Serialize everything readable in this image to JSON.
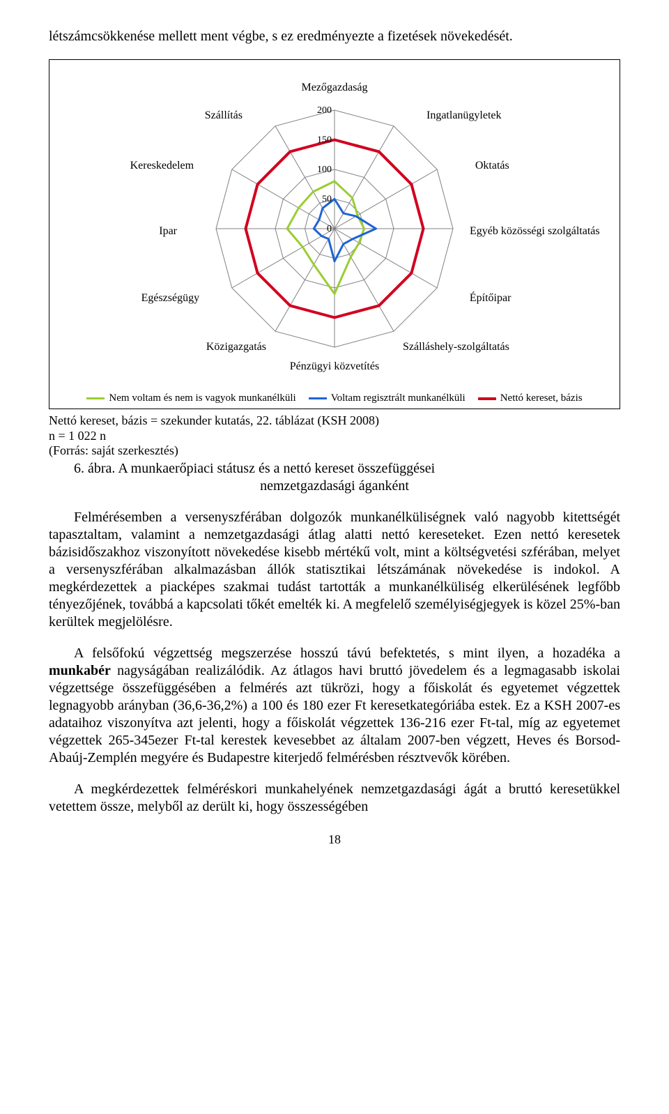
{
  "intro_paragraph": "létszámcsökkenése mellett ment végbe, s ez eredményezte a fizetések növekedését.",
  "chart": {
    "type": "radar",
    "background_color": "#ffffff",
    "grid_color": "#808080",
    "axis_labels": [
      "Mezőgazdaság",
      "Ingatlanügyletek",
      "Oktatás",
      "Egyéb közösségi szolgáltatás",
      "Építőipar",
      "Szálláshely-szolgáltatás",
      "Pénzügyi közvetítés",
      "Közigazgatás",
      "Egészségügy",
      "Ipar",
      "Kereskedelem",
      "Szállítás"
    ],
    "ticks": [
      0,
      50,
      100,
      150,
      200
    ],
    "tick_labels": [
      "0",
      "50",
      "100",
      "150",
      "200"
    ],
    "series": [
      {
        "name": "Nem voltam és nem is vagyok munkanélküli",
        "color": "#9acd32",
        "stroke_width": 3,
        "values": [
          80,
          60,
          45,
          50,
          48,
          55,
          110,
          70,
          62,
          80,
          70,
          72
        ]
      },
      {
        "name": "Voltam regisztrált munkanélküli",
        "color": "#1e63d6",
        "stroke_width": 3,
        "values": [
          50,
          30,
          42,
          70,
          35,
          30,
          55,
          20,
          25,
          35,
          30,
          40
        ]
      },
      {
        "name": "Nettó kereset, bázis",
        "color": "#d1001f",
        "stroke_width": 4,
        "values": [
          150,
          150,
          150,
          150,
          150,
          150,
          150,
          150,
          150,
          150,
          150,
          150
        ]
      }
    ],
    "label_fontsize": 16,
    "tick_fontsize": 14,
    "max": 200
  },
  "caption": {
    "line1": "Nettó kereset, bázis = szekunder kutatás, 22. táblázat (KSH 2008)",
    "line2": "n = 1 022 n",
    "line3": "(Forrás: saját szerkesztés)",
    "fig_label": "6. ábra.",
    "fig_title_1": "A munkaerőpiaci státusz és a nettó kereset összefüggései",
    "fig_title_2": "nemzetgazdasági áganként"
  },
  "para2": "Felmérésemben a versenyszférában dolgozók munkanélküliségnek való nagyobb kitettségét tapasztaltam, valamint a nemzetgazdasági átlag alatti nettó kereseteket. Ezen nettó keresetek bázisidőszakhoz viszonyított növekedése kisebb mértékű volt, mint a költségvetési szférában, melyet a versenyszférában alkalmazásban állók statisztikai létszámának növekedése is indokol. A megkérdezettek a piacképes szakmai tudást tartották a munkanélküliség elkerülésének legfőbb tényezőjének, továbbá a kapcsolati tőkét emelték ki. A megfelelő személyiségjegyek is közel 25%-ban kerültek megjelölésre.",
  "para3_part1": "A felsőfokú végzettség megszerzése hosszú távú befektetés, s mint ilyen, a hozadéka a ",
  "para3_bold": "munkabér",
  "para3_part2": " nagyságában realizálódik. Az átlagos havi bruttó jövedelem és a legmagasabb iskolai végzettsége összefüggésében a felmérés azt tükrözi, hogy a főiskolát és egyetemet végzettek legnagyobb arányban (36,6-36,2%) a 100 és 180 ezer Ft keresetkategóriába estek. Ez a KSH 2007-es adataihoz viszonyítva azt jelenti, hogy a főiskolát végzettek 136-216 ezer Ft-tal, míg az egyetemet végzettek 265-345ezer Ft-tal kerestek kevesebbet az általam 2007-ben végzett, Heves és Borsod-Abaúj-Zemplén megyére és Budapestre kiterjedő felmérésben résztvevők körében.",
  "para4": "A megkérdezettek felméréskori munkahelyének nemzetgazdasági ágát a bruttó keresetükkel vetettem össze, melyből az derült ki, hogy összességében",
  "page_number": "18"
}
